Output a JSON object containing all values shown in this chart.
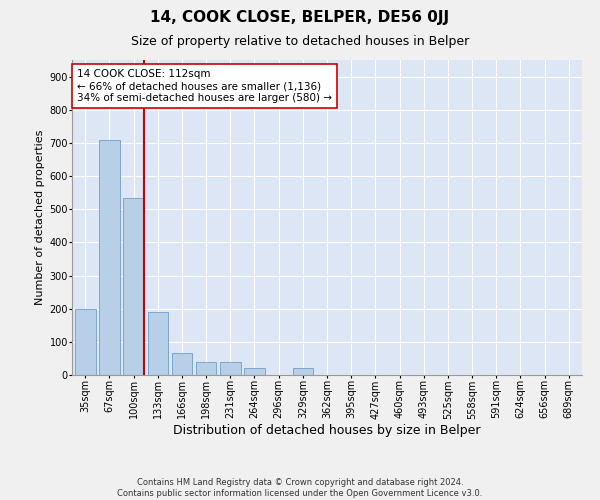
{
  "title1": "14, COOK CLOSE, BELPER, DE56 0JJ",
  "title2": "Size of property relative to detached houses in Belper",
  "xlabel": "Distribution of detached houses by size in Belper",
  "ylabel": "Number of detached properties",
  "categories": [
    "35sqm",
    "67sqm",
    "100sqm",
    "133sqm",
    "166sqm",
    "198sqm",
    "231sqm",
    "264sqm",
    "296sqm",
    "329sqm",
    "362sqm",
    "395sqm",
    "427sqm",
    "460sqm",
    "493sqm",
    "525sqm",
    "558sqm",
    "591sqm",
    "624sqm",
    "656sqm",
    "689sqm"
  ],
  "values": [
    200,
    710,
    535,
    190,
    65,
    40,
    40,
    20,
    0,
    20,
    0,
    0,
    0,
    0,
    0,
    0,
    0,
    0,
    0,
    0,
    0
  ],
  "bar_color": "#b8cfe8",
  "bar_edge_color": "#6e9ec8",
  "line_color": "#cc0000",
  "line_x_index": 2,
  "annotation_text": "14 COOK CLOSE: 112sqm\n← 66% of detached houses are smaller (1,136)\n34% of semi-detached houses are larger (580) →",
  "annotation_box_color": "#ffffff",
  "annotation_box_edge": "#cc0000",
  "ylim": [
    0,
    950
  ],
  "yticks": [
    0,
    100,
    200,
    300,
    400,
    500,
    600,
    700,
    800,
    900
  ],
  "background_color": "#dce6f5",
  "grid_color": "#ffffff",
  "footer": "Contains HM Land Registry data © Crown copyright and database right 2024.\nContains public sector information licensed under the Open Government Licence v3.0.",
  "title1_fontsize": 11,
  "title2_fontsize": 9,
  "xlabel_fontsize": 9,
  "ylabel_fontsize": 8,
  "tick_fontsize": 7,
  "annotation_fontsize": 7.5,
  "footer_fontsize": 6
}
